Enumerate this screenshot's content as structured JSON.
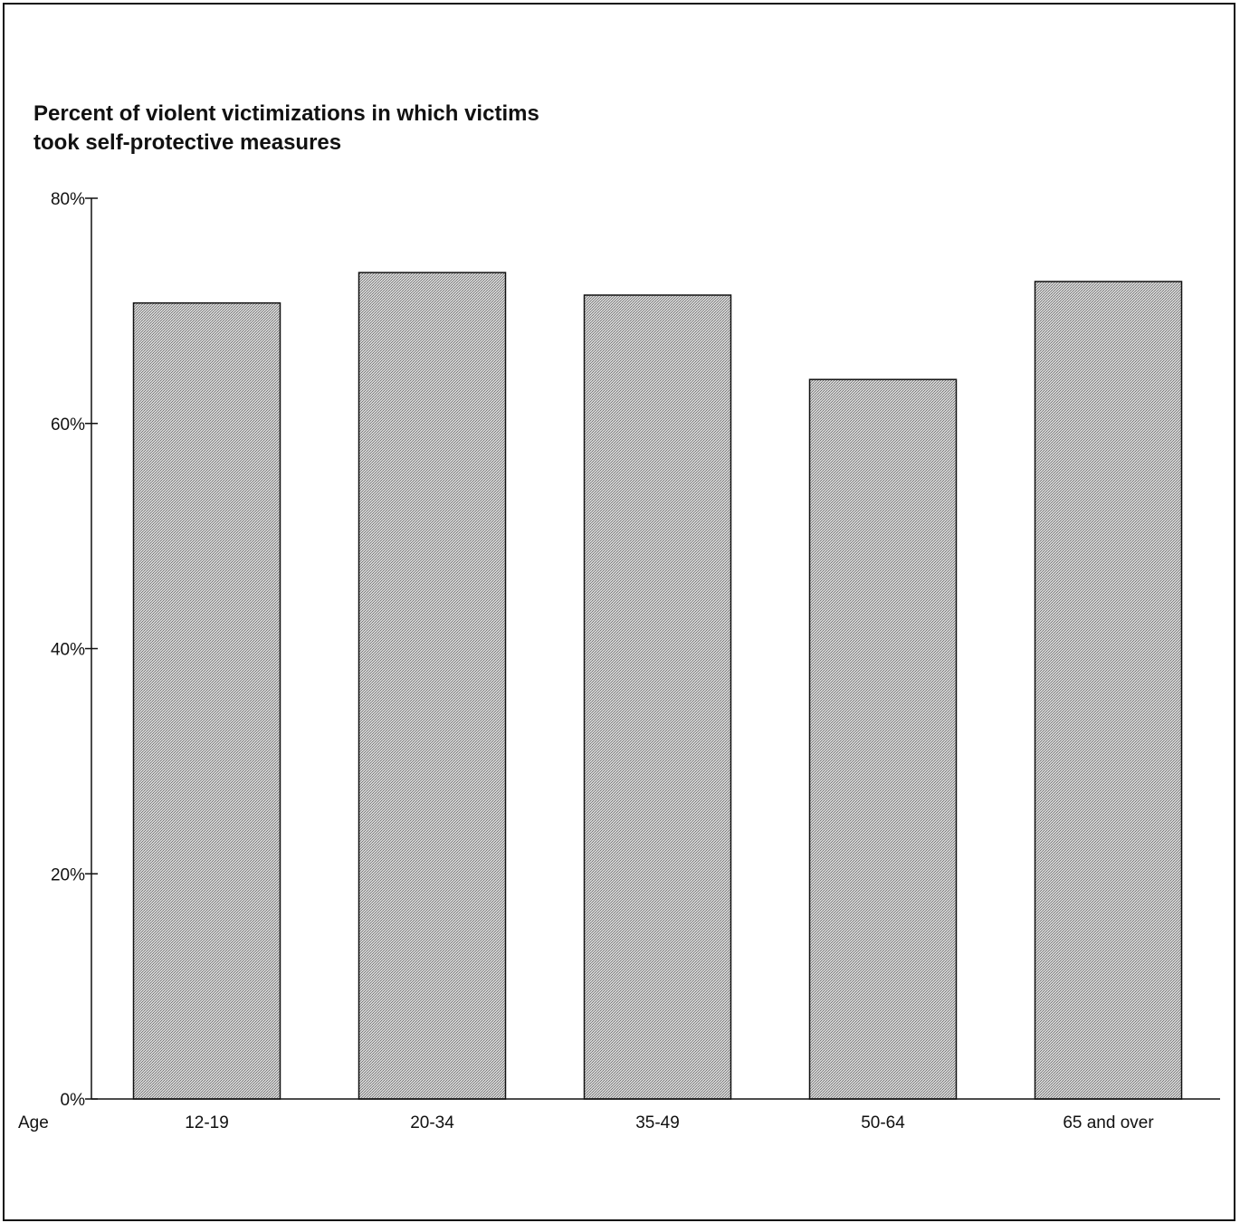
{
  "chart_data": {
    "type": "bar",
    "title_lines": [
      "Percent of violent victimizations in which victims",
      "took self-protective measures"
    ],
    "xlabel": "Age",
    "ylabel": "",
    "categories": [
      "12-19",
      "20-34",
      "35-49",
      "50-64",
      "65 and over"
    ],
    "values": [
      70.7,
      73.4,
      71.4,
      63.9,
      72.6
    ],
    "ylim": [
      0,
      80
    ],
    "yticks": [
      0,
      20,
      40,
      60,
      80
    ],
    "ytick_labels": [
      "0%",
      "20%",
      "40%",
      "60%",
      "80%"
    ],
    "grid": false,
    "legend": "none",
    "bar_fill": "#b4b4b4",
    "bar_stroke": "#111111"
  }
}
